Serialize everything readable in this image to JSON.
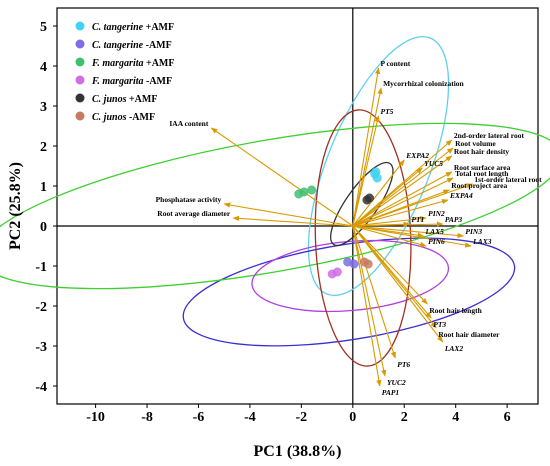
{
  "chart_data": {
    "type": "scatter",
    "xlabel": "PC1 (38.8%)",
    "ylabel": "PC2 (25.8%)",
    "xlim": [
      -11.5,
      7.2
    ],
    "ylim": [
      -4.45,
      5.45
    ],
    "xticks": [
      -10,
      -8,
      -6,
      -4,
      -2,
      0,
      2,
      4,
      6
    ],
    "yticks": [
      -4,
      -3,
      -2,
      -1,
      0,
      1,
      2,
      3,
      4,
      5
    ],
    "legend_position": "top-left",
    "groups": [
      {
        "name_italic": "C. tangerine",
        "name_suffix": " +AMF",
        "color": "#3fd3f2",
        "ellipse_color": "#5fd0ec",
        "points": [
          [
            0.85,
            1.3
          ],
          [
            0.95,
            1.2
          ],
          [
            0.9,
            1.35
          ]
        ],
        "ellipse": {
          "cx": 1.0,
          "cy": 1.5,
          "rx": 4.2,
          "ry": 1.55,
          "angle_deg": 68
        }
      },
      {
        "name_italic": "C. tangerine",
        "name_suffix": " -AMF",
        "color": "#7b6ee6",
        "ellipse_color": "#3a2fd4",
        "points": [
          [
            -0.2,
            -0.9
          ],
          [
            0.05,
            -0.95
          ]
        ],
        "ellipse": {
          "cx": -0.15,
          "cy": -1.65,
          "rx": 5.1,
          "ry": 1.45,
          "angle_deg": 9
        }
      },
      {
        "name_italic": "F. margarita",
        "name_suffix": " +AMF",
        "color": "#3fbf72",
        "ellipse_color": "#3fcf30",
        "points": [
          [
            -1.9,
            0.85
          ],
          [
            -1.6,
            0.9
          ],
          [
            -2.1,
            0.8
          ]
        ],
        "ellipse": {
          "cx": -3.2,
          "cy": 0.5,
          "rx": 9.0,
          "ry": 2.0,
          "angle_deg": 10
        }
      },
      {
        "name_italic": "F. margarita",
        "name_suffix": " -AMF",
        "color": "#cf6ee6",
        "ellipse_color": "#b040e0",
        "points": [
          [
            -0.8,
            -1.2
          ],
          [
            -0.6,
            -1.15
          ]
        ],
        "ellipse": {
          "cx": -0.1,
          "cy": -1.25,
          "rx": 3.0,
          "ry": 1.05,
          "angle_deg": 5
        }
      },
      {
        "name_italic": "C. junos",
        "name_suffix": " +AMF",
        "color": "#333333",
        "ellipse_color": "#333333",
        "points": [
          [
            0.55,
            0.65
          ],
          [
            0.65,
            0.7
          ]
        ],
        "ellipse": {
          "cx": 0.35,
          "cy": 0.55,
          "rx": 1.5,
          "ry": 0.48,
          "angle_deg": 55
        }
      },
      {
        "name_italic": "C. junos",
        "name_suffix": " -AMF",
        "color": "#c87a60",
        "ellipse_color": "#a03020",
        "points": [
          [
            0.45,
            -0.9
          ],
          [
            0.6,
            -0.95
          ]
        ],
        "ellipse": {
          "cx": 0.4,
          "cy": -0.3,
          "rx": 3.9,
          "ry": 1.45,
          "angle_deg": 92
        }
      }
    ],
    "loadings": [
      {
        "label": "P content",
        "italic": false,
        "x": 1.0,
        "y": 3.95
      },
      {
        "label": "Mycorrhizal colonization",
        "italic": false,
        "x": 1.1,
        "y": 3.45
      },
      {
        "label": "PT5",
        "italic": true,
        "x": 1.0,
        "y": 2.75
      },
      {
        "label": "IAA content",
        "italic": false,
        "x": -5.5,
        "y": 2.45
      },
      {
        "label": "2nd-order lateral root",
        "italic": false,
        "x": 3.85,
        "y": 2.15
      },
      {
        "label": "Root volume",
        "italic": false,
        "x": 3.9,
        "y": 1.95
      },
      {
        "label": "Root hair density",
        "italic": false,
        "x": 3.85,
        "y": 1.75
      },
      {
        "label": "EXPA2",
        "italic": true,
        "x": 2.0,
        "y": 1.65
      },
      {
        "label": "YUC5",
        "italic": true,
        "x": 2.7,
        "y": 1.45
      },
      {
        "label": "Root surface area",
        "italic": false,
        "x": 3.85,
        "y": 1.35
      },
      {
        "label": "Total root length",
        "italic": false,
        "x": 3.9,
        "y": 1.2
      },
      {
        "label": "1st-order lateral root",
        "italic": false,
        "x": 4.65,
        "y": 1.05
      },
      {
        "label": "Root project area",
        "italic": false,
        "x": 3.75,
        "y": 0.9
      },
      {
        "label": "EXPA4",
        "italic": true,
        "x": 3.7,
        "y": 0.65
      },
      {
        "label": "Phosphatase activity",
        "italic": false,
        "x": -5.0,
        "y": 0.55
      },
      {
        "label": "Root average diameter",
        "italic": false,
        "x": -4.65,
        "y": 0.2
      },
      {
        "label": "PIN2",
        "italic": true,
        "x": 2.85,
        "y": 0.2
      },
      {
        "label": "PT1",
        "italic": true,
        "x": 2.2,
        "y": 0.05
      },
      {
        "label": "PAP3",
        "italic": true,
        "x": 3.5,
        "y": 0.05
      },
      {
        "label": "LAX5",
        "italic": true,
        "x": 2.75,
        "y": -0.25
      },
      {
        "label": "PIN3",
        "italic": true,
        "x": 4.3,
        "y": -0.25
      },
      {
        "label": "PIN6",
        "italic": true,
        "x": 2.85,
        "y": -0.5
      },
      {
        "label": "LAX3",
        "italic": true,
        "x": 4.6,
        "y": -0.5
      },
      {
        "label": "Root hair length",
        "italic": false,
        "x": 2.9,
        "y": -1.95
      },
      {
        "label": "PT3",
        "italic": true,
        "x": 3.05,
        "y": -2.3
      },
      {
        "label": "Root hair diameter",
        "italic": false,
        "x": 3.25,
        "y": -2.55
      },
      {
        "label": "LAX2",
        "italic": true,
        "x": 3.5,
        "y": -2.9
      },
      {
        "label": "PT6",
        "italic": true,
        "x": 1.65,
        "y": -3.3
      },
      {
        "label": "YUC2",
        "italic": true,
        "x": 1.25,
        "y": -3.75
      },
      {
        "label": "PAP1",
        "italic": true,
        "x": 1.05,
        "y": -4.0
      }
    ],
    "arrow_color": "#d99a00"
  }
}
